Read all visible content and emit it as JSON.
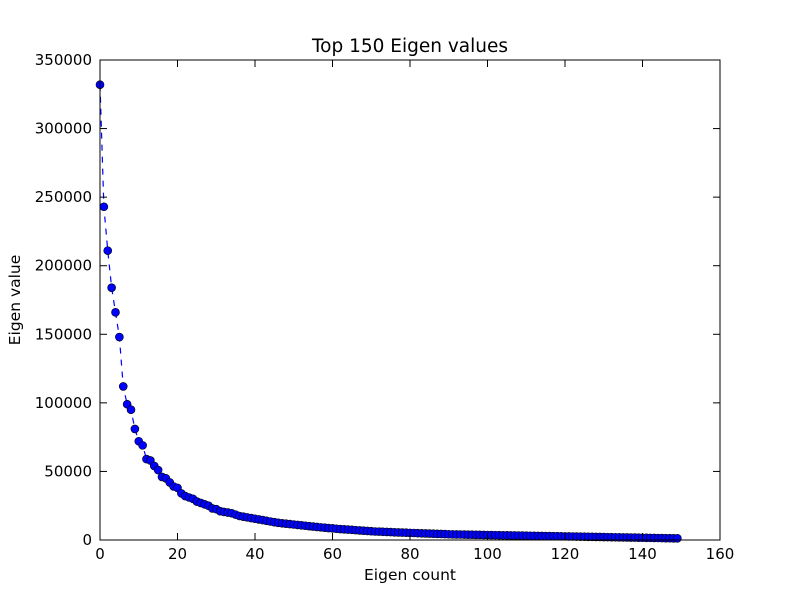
{
  "chart_data": {
    "type": "scatter",
    "title": "Top 150 Eigen values",
    "xlabel": "Eigen count",
    "ylabel": "Eigen value",
    "xlim": [
      0,
      160
    ],
    "ylim": [
      0,
      350000
    ],
    "xticks": [
      0,
      20,
      40,
      60,
      80,
      100,
      120,
      140,
      160
    ],
    "yticks": [
      0,
      50000,
      100000,
      150000,
      200000,
      250000,
      300000,
      350000
    ],
    "grid": false,
    "legend": false,
    "line_style": "dashed",
    "series": [
      {
        "color": "#0000ff",
        "marker": "circle",
        "x": [
          0,
          1,
          2,
          3,
          4,
          5,
          6,
          7,
          8,
          9,
          10,
          11,
          12,
          13,
          14,
          15,
          16,
          17,
          18,
          19,
          20,
          21,
          22,
          23,
          24,
          25,
          26,
          27,
          28,
          29,
          30,
          31,
          32,
          33,
          34,
          35,
          36,
          37,
          38,
          39,
          40,
          41,
          42,
          43,
          44,
          45,
          46,
          47,
          48,
          49,
          50,
          51,
          52,
          53,
          54,
          55,
          56,
          57,
          58,
          59,
          60,
          61,
          62,
          63,
          64,
          65,
          66,
          67,
          68,
          69,
          70,
          71,
          72,
          73,
          74,
          75,
          76,
          77,
          78,
          79,
          80,
          81,
          82,
          83,
          84,
          85,
          86,
          87,
          88,
          89,
          90,
          91,
          92,
          93,
          94,
          95,
          96,
          97,
          98,
          99,
          100,
          101,
          102,
          103,
          104,
          105,
          106,
          107,
          108,
          109,
          110,
          111,
          112,
          113,
          114,
          115,
          116,
          117,
          118,
          119,
          120,
          121,
          122,
          123,
          124,
          125,
          126,
          127,
          128,
          129,
          130,
          131,
          132,
          133,
          134,
          135,
          136,
          137,
          138,
          139,
          140,
          141,
          142,
          143,
          144,
          145,
          146,
          147,
          148,
          149
        ],
        "y": [
          332000,
          243000,
          211000,
          184000,
          166000,
          148000,
          112000,
          99000,
          95000,
          81000,
          72000,
          69000,
          59000,
          58000,
          54000,
          51000,
          46000,
          45000,
          42000,
          39000,
          38000,
          34000,
          32000,
          31000,
          30000,
          28000,
          27000,
          26000,
          25000,
          23000,
          22500,
          21000,
          20500,
          20000,
          19500,
          18500,
          17500,
          17000,
          16500,
          16000,
          15500,
          15000,
          14500,
          14000,
          13500,
          13000,
          12500,
          12200,
          11900,
          11600,
          11300,
          11000,
          10700,
          10400,
          10100,
          9800,
          9500,
          9200,
          9000,
          8700,
          8500,
          8200,
          8000,
          7800,
          7600,
          7400,
          7200,
          7000,
          6800,
          6600,
          6400,
          6200,
          6100,
          6000,
          5900,
          5800,
          5600,
          5500,
          5400,
          5300,
          5200,
          5100,
          5000,
          4900,
          4800,
          4700,
          4600,
          4500,
          4400,
          4300,
          4200,
          4100,
          4050,
          4000,
          3950,
          3900,
          3850,
          3800,
          3750,
          3700,
          3650,
          3600,
          3550,
          3500,
          3450,
          3400,
          3350,
          3300,
          3250,
          3200,
          3150,
          3100,
          3050,
          3000,
          2950,
          2900,
          2850,
          2800,
          2750,
          2700,
          2650,
          2600,
          2550,
          2500,
          2450,
          2400,
          2350,
          2300,
          2250,
          2200,
          2150,
          2100,
          2050,
          2000,
          1950,
          1900,
          1850,
          1800,
          1750,
          1700,
          1650,
          1600,
          1550,
          1500,
          1450,
          1400,
          1350,
          1300,
          1250,
          1200
        ]
      }
    ]
  }
}
